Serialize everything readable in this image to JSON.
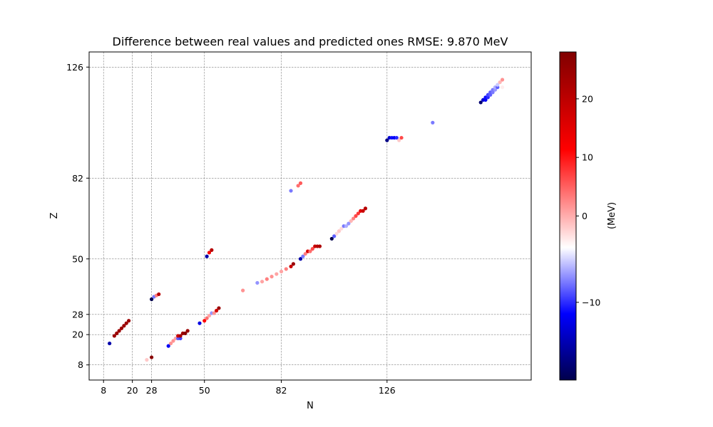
{
  "chart_data": {
    "type": "scatter",
    "title": "Difference between real values and predicted ones  RMSE: 9.870 MeV",
    "xlabel": "N",
    "ylabel": "Z",
    "xlim": [
      2,
      186
    ],
    "ylim": [
      2,
      132
    ],
    "x_ticks": [
      8,
      20,
      28,
      50,
      82,
      126
    ],
    "y_ticks": [
      8,
      20,
      28,
      50,
      82,
      126
    ],
    "grid": "dashed at magic numbers",
    "colormap": "seismic",
    "colorbar": {
      "label": "(MeV)",
      "range": [
        -19,
        28
      ],
      "ticks": [
        -10,
        0,
        10,
        20
      ],
      "tick_labels": [
        "−10",
        "0",
        "10",
        "20"
      ]
    },
    "points": [
      {
        "x": 10.5,
        "y": 16.5,
        "v": -14
      },
      {
        "x": 12.5,
        "y": 19.5,
        "v": 25
      },
      {
        "x": 13.5,
        "y": 20.5,
        "v": 25
      },
      {
        "x": 14.5,
        "y": 21.5,
        "v": 25
      },
      {
        "x": 15.5,
        "y": 22.5,
        "v": 25
      },
      {
        "x": 16.5,
        "y": 23.5,
        "v": 25
      },
      {
        "x": 17.5,
        "y": 24.5,
        "v": 25
      },
      {
        "x": 18.5,
        "y": 25.5,
        "v": 25
      },
      {
        "x": 26,
        "y": 10,
        "v": 3
      },
      {
        "x": 28,
        "y": 11,
        "v": 27
      },
      {
        "x": 28,
        "y": 34,
        "v": -19
      },
      {
        "x": 29,
        "y": 35,
        "v": -5
      },
      {
        "x": 30,
        "y": 35.5,
        "v": 7
      },
      {
        "x": 31,
        "y": 36,
        "v": 22
      },
      {
        "x": 35,
        "y": 15.5,
        "v": -10
      },
      {
        "x": 36,
        "y": 16.5,
        "v": 6
      },
      {
        "x": 37,
        "y": 17.5,
        "v": 6
      },
      {
        "x": 38,
        "y": 18.5,
        "v": 5
      },
      {
        "x": 39,
        "y": 18.5,
        "v": -6
      },
      {
        "x": 39,
        "y": 19.5,
        "v": 20
      },
      {
        "x": 40,
        "y": 18.5,
        "v": -7
      },
      {
        "x": 40,
        "y": 19.5,
        "v": 24
      },
      {
        "x": 41,
        "y": 20.5,
        "v": 25
      },
      {
        "x": 42,
        "y": 20.5,
        "v": 27
      },
      {
        "x": 43,
        "y": 21.5,
        "v": 25
      },
      {
        "x": 48,
        "y": 24.5,
        "v": -11
      },
      {
        "x": 50,
        "y": 25.5,
        "v": 14
      },
      {
        "x": 51,
        "y": 26.5,
        "v": 8
      },
      {
        "x": 52,
        "y": 27.5,
        "v": 5
      },
      {
        "x": 53,
        "y": 28.5,
        "v": -4
      },
      {
        "x": 54,
        "y": 28.5,
        "v": 6
      },
      {
        "x": 55,
        "y": 29.5,
        "v": 19
      },
      {
        "x": 56,
        "y": 30.5,
        "v": 25
      },
      {
        "x": 51,
        "y": 51,
        "v": -14
      },
      {
        "x": 52,
        "y": 52.5,
        "v": 15
      },
      {
        "x": 53,
        "y": 53.5,
        "v": 22
      },
      {
        "x": 66,
        "y": 37.5,
        "v": 6
      },
      {
        "x": 72,
        "y": 40.5,
        "v": -4
      },
      {
        "x": 74,
        "y": 41,
        "v": 5
      },
      {
        "x": 76,
        "y": 42,
        "v": 7
      },
      {
        "x": 78,
        "y": 43,
        "v": 6
      },
      {
        "x": 80,
        "y": 44,
        "v": 5
      },
      {
        "x": 82,
        "y": 45,
        "v": 5
      },
      {
        "x": 84,
        "y": 46,
        "v": 7
      },
      {
        "x": 86,
        "y": 47,
        "v": 20
      },
      {
        "x": 87,
        "y": 48,
        "v": 25
      },
      {
        "x": 90,
        "y": 50,
        "v": -14
      },
      {
        "x": 91,
        "y": 51,
        "v": -5
      },
      {
        "x": 92,
        "y": 52,
        "v": 7
      },
      {
        "x": 93,
        "y": 53,
        "v": 18
      },
      {
        "x": 94,
        "y": 53,
        "v": 8
      },
      {
        "x": 95,
        "y": 54,
        "v": 10
      },
      {
        "x": 96,
        "y": 55,
        "v": 20
      },
      {
        "x": 97,
        "y": 55,
        "v": 22
      },
      {
        "x": 98,
        "y": 55,
        "v": 23
      },
      {
        "x": 103,
        "y": 58,
        "v": -19
      },
      {
        "x": 104,
        "y": 59,
        "v": -6
      },
      {
        "x": 105,
        "y": 60,
        "v": 2
      },
      {
        "x": 106,
        "y": 61,
        "v": 3
      },
      {
        "x": 107,
        "y": 62,
        "v": 2
      },
      {
        "x": 108,
        "y": 63,
        "v": -5
      },
      {
        "x": 109,
        "y": 63,
        "v": -3
      },
      {
        "x": 110,
        "y": 64,
        "v": -4
      },
      {
        "x": 111,
        "y": 65,
        "v": 4
      },
      {
        "x": 112,
        "y": 66,
        "v": 7
      },
      {
        "x": 113,
        "y": 67,
        "v": 10
      },
      {
        "x": 114,
        "y": 68,
        "v": 11
      },
      {
        "x": 115,
        "y": 69,
        "v": 17
      },
      {
        "x": 116,
        "y": 69,
        "v": 20
      },
      {
        "x": 117,
        "y": 70,
        "v": 22
      },
      {
        "x": 86,
        "y": 77,
        "v": -5
      },
      {
        "x": 89,
        "y": 79,
        "v": 8
      },
      {
        "x": 90,
        "y": 80,
        "v": 9
      },
      {
        "x": 126,
        "y": 97,
        "v": -16
      },
      {
        "x": 127,
        "y": 98,
        "v": -12
      },
      {
        "x": 128,
        "y": 98,
        "v": -9
      },
      {
        "x": 129,
        "y": 98,
        "v": -10
      },
      {
        "x": 130,
        "y": 98,
        "v": -8
      },
      {
        "x": 131,
        "y": 97,
        "v": 3
      },
      {
        "x": 132,
        "y": 98,
        "v": 10
      },
      {
        "x": 145,
        "y": 104,
        "v": -5
      },
      {
        "x": 165,
        "y": 112,
        "v": -17
      },
      {
        "x": 166,
        "y": 113,
        "v": -12
      },
      {
        "x": 167,
        "y": 113,
        "v": -10
      },
      {
        "x": 167,
        "y": 114,
        "v": -9
      },
      {
        "x": 168,
        "y": 114,
        "v": -8
      },
      {
        "x": 168,
        "y": 115,
        "v": -7
      },
      {
        "x": 169,
        "y": 115,
        "v": -6
      },
      {
        "x": 169,
        "y": 116,
        "v": -6
      },
      {
        "x": 170,
        "y": 116,
        "v": -5
      },
      {
        "x": 170,
        "y": 117,
        "v": -5
      },
      {
        "x": 171,
        "y": 117,
        "v": -4
      },
      {
        "x": 171,
        "y": 118,
        "v": -3
      },
      {
        "x": 172,
        "y": 118,
        "v": -6
      },
      {
        "x": 172,
        "y": 119,
        "v": -2
      },
      {
        "x": 173,
        "y": 120,
        "v": 4
      },
      {
        "x": 174,
        "y": 118,
        "v": 1
      },
      {
        "x": 174,
        "y": 121,
        "v": 6
      }
    ]
  }
}
